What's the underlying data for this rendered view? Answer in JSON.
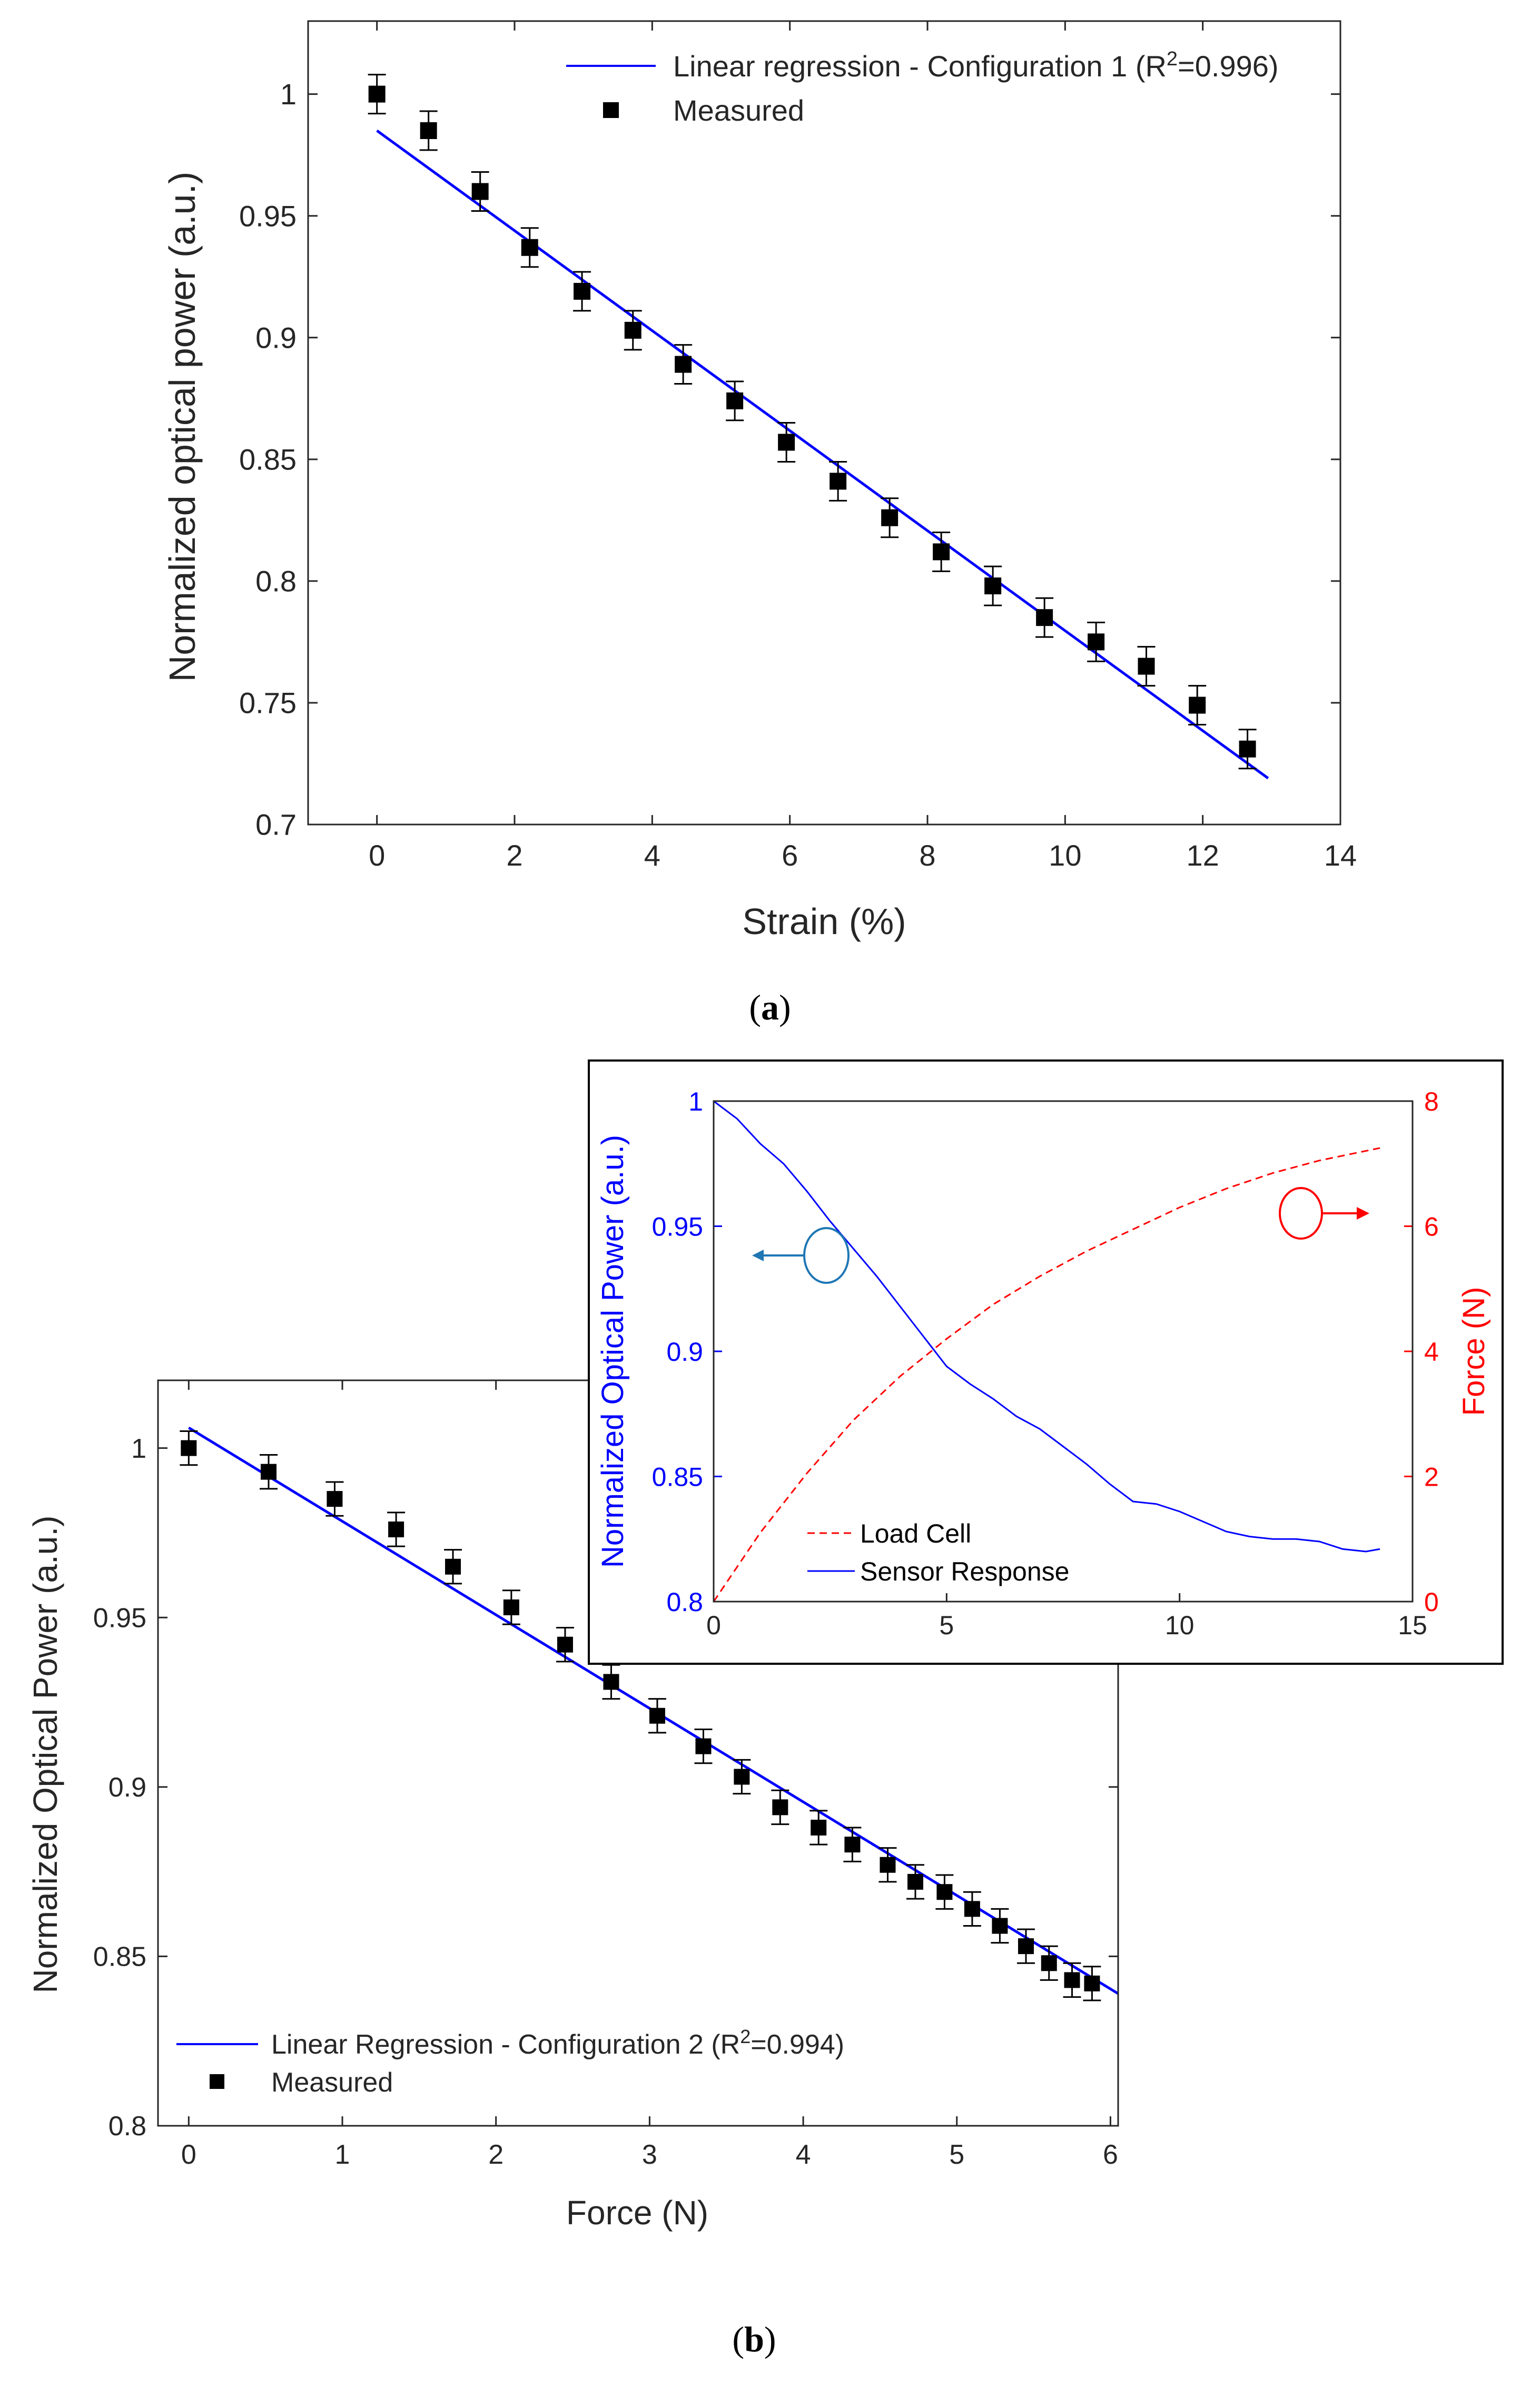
{
  "chart_data": [
    {
      "id": "a",
      "type": "scatter",
      "caption": "(a)",
      "caption_letter": "a",
      "xlabel": "Strain (%)",
      "ylabel": "Normalized optical power (a.u.)",
      "xlim": [
        -1,
        14
      ],
      "ylim": [
        0.7,
        1.03
      ],
      "xticks": [
        0,
        2,
        4,
        6,
        8,
        10,
        12,
        14
      ],
      "yticks": [
        0.7,
        0.75,
        0.8,
        0.85,
        0.9,
        0.95,
        1.0
      ],
      "ytick_labels": [
        "0.7",
        "0.75",
        "0.8",
        "0.85",
        "0.9",
        "0.95",
        "1"
      ],
      "legend": {
        "position": "top-right",
        "regression_label": "Linear regression - Configuration 1 (R",
        "regression_sup": "2",
        "regression_suffix": "=0.996)",
        "measured_label": "Measured"
      },
      "regression": {
        "x": [
          0,
          12.95
        ],
        "y": [
          0.985,
          0.719
        ],
        "color": "#0000ff"
      },
      "measured": {
        "x": [
          0,
          0.75,
          1.5,
          2.22,
          2.98,
          3.72,
          4.45,
          5.2,
          5.95,
          6.7,
          7.45,
          8.2,
          8.95,
          9.7,
          10.45,
          11.18,
          11.92,
          12.65
        ],
        "y": [
          1.0,
          0.985,
          0.96,
          0.937,
          0.919,
          0.903,
          0.889,
          0.874,
          0.857,
          0.841,
          0.826,
          0.812,
          0.798,
          0.785,
          0.775,
          0.765,
          0.749,
          0.731
        ],
        "err": [
          0.008,
          0.008,
          0.008,
          0.008,
          0.008,
          0.008,
          0.008,
          0.008,
          0.008,
          0.008,
          0.008,
          0.008,
          0.008,
          0.008,
          0.008,
          0.008,
          0.008,
          0.008
        ]
      }
    },
    {
      "id": "b",
      "type": "scatter",
      "caption": "(b)",
      "caption_letter": "b",
      "xlabel": "Force (N)",
      "ylabel": "Normalized Optical Power (a.u.)",
      "xlim": [
        -0.2,
        6.05
      ],
      "ylim": [
        0.8,
        1.02
      ],
      "xticks": [
        0,
        1,
        2,
        3,
        4,
        5,
        6
      ],
      "yticks": [
        0.8,
        0.85,
        0.9,
        0.95,
        1.0
      ],
      "ytick_labels": [
        "0.8",
        "0.85",
        "0.9",
        "0.95",
        "1"
      ],
      "legend": {
        "position": "bottom-left",
        "regression_label": "Linear Regression - Configuration 2 (R",
        "regression_sup": "2",
        "regression_suffix": "=0.994)",
        "measured_label": "Measured"
      },
      "regression": {
        "x": [
          0,
          6.05
        ],
        "y": [
          1.006,
          0.839
        ],
        "color": "#0000ff"
      },
      "measured": {
        "x": [
          0,
          0.52,
          0.95,
          1.35,
          1.72,
          2.1,
          2.45,
          2.75,
          3.05,
          3.35,
          3.6,
          3.85,
          4.1,
          4.32,
          4.55,
          4.73,
          4.92,
          5.1,
          5.28,
          5.45,
          5.6,
          5.75,
          5.88
        ],
        "y": [
          1.0,
          0.993,
          0.985,
          0.976,
          0.965,
          0.953,
          0.942,
          0.931,
          0.921,
          0.912,
          0.903,
          0.894,
          0.888,
          0.883,
          0.877,
          0.872,
          0.869,
          0.864,
          0.859,
          0.853,
          0.848,
          0.843,
          0.842
        ],
        "err": [
          0.005,
          0.005,
          0.005,
          0.005,
          0.005,
          0.005,
          0.005,
          0.005,
          0.005,
          0.005,
          0.005,
          0.005,
          0.005,
          0.005,
          0.005,
          0.005,
          0.005,
          0.005,
          0.005,
          0.005,
          0.005,
          0.005,
          0.005
        ]
      }
    },
    {
      "id": "b-inset",
      "type": "line",
      "xlim": [
        0,
        15
      ],
      "xticks": [
        0,
        5,
        10,
        15
      ],
      "ylabel_left": "Normalized Optical Power (a.u.)",
      "ylim_left": [
        0.8,
        1.0
      ],
      "yticks_left": [
        0.8,
        0.85,
        0.9,
        0.95,
        1.0
      ],
      "ytick_labels_left": [
        "0.8",
        "0.85",
        "0.9",
        "0.95",
        "1"
      ],
      "ylabel_right": "Force (N)",
      "ylim_right": [
        0,
        8
      ],
      "yticks_right": [
        0,
        2,
        4,
        6,
        8
      ],
      "left_color": "#0000ff",
      "right_color": "#ff0000",
      "arrow_left_color": "#1f77b4",
      "legend": {
        "position": "bottom-center",
        "load_cell_label": "Load Cell",
        "sensor_label": "Sensor Response"
      },
      "sensor_response": {
        "x": [
          0,
          0.5,
          1,
          1.5,
          2,
          2.5,
          3,
          3.5,
          4,
          4.5,
          5,
          5.5,
          6,
          6.5,
          7,
          7.5,
          8,
          8.5,
          9,
          9.5,
          10,
          10.5,
          11,
          11.5,
          12,
          12.5,
          13,
          13.5,
          14,
          14.3
        ],
        "y": [
          1.0,
          0.993,
          0.983,
          0.975,
          0.964,
          0.952,
          0.941,
          0.93,
          0.918,
          0.906,
          0.894,
          0.887,
          0.881,
          0.874,
          0.869,
          0.862,
          0.855,
          0.847,
          0.84,
          0.839,
          0.836,
          0.832,
          0.828,
          0.826,
          0.825,
          0.825,
          0.824,
          0.821,
          0.82,
          0.821
        ]
      },
      "load_cell": {
        "x": [
          0,
          1,
          2,
          3,
          4,
          5,
          6,
          7,
          8,
          9,
          10,
          11,
          12,
          13,
          14.3
        ],
        "y": [
          0,
          1.1,
          2.05,
          2.9,
          3.6,
          4.2,
          4.75,
          5.2,
          5.6,
          5.95,
          6.3,
          6.6,
          6.85,
          7.05,
          7.25
        ]
      }
    }
  ]
}
